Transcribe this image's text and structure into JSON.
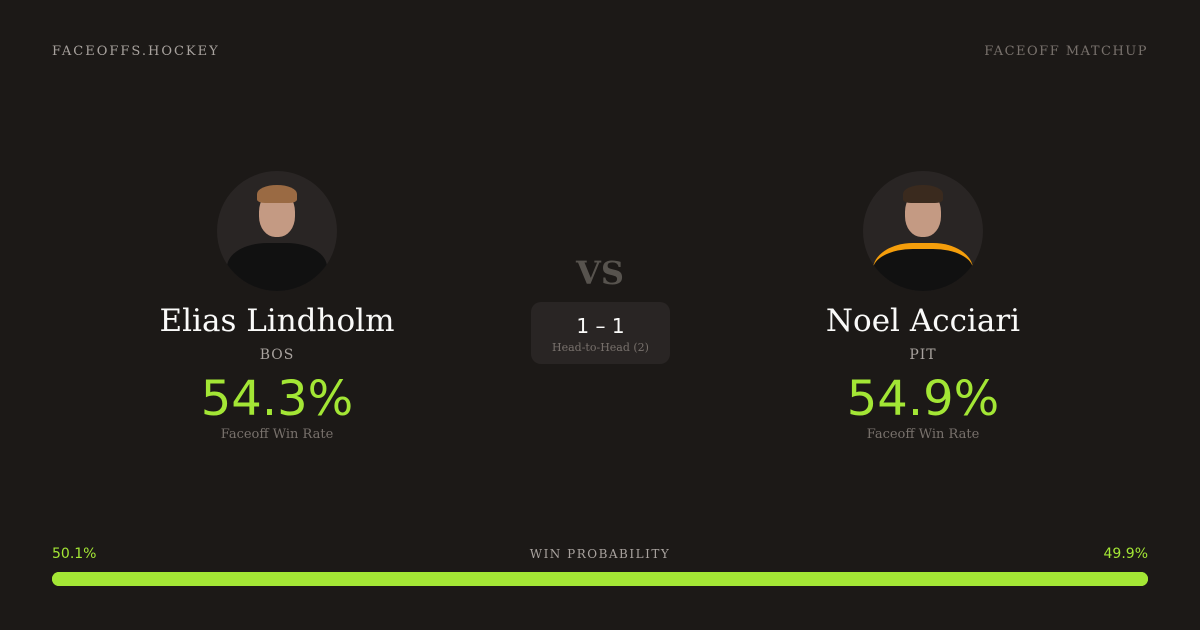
{
  "header": {
    "brand": "FACEOFFS.HOCKEY",
    "tag": "FACEOFF MATCHUP"
  },
  "players": [
    {
      "name": "Elias Lindholm",
      "team": "BOS",
      "win_rate": "54.3%",
      "win_rate_label": "Faceoff Win Rate",
      "hair_color": "#9a6a43"
    },
    {
      "name": "Noel Acciari",
      "team": "PIT",
      "win_rate": "54.9%",
      "win_rate_label": "Faceoff Win Rate",
      "hair_color": "#3a2a1e"
    }
  ],
  "vs": "VS",
  "head_to_head": {
    "score": "1 – 1",
    "label": "Head-to-Head (2)"
  },
  "win_probability": {
    "label": "WIN PROBABILITY",
    "left": "50.1%",
    "right": "49.9%",
    "left_value": 50.1,
    "right_value": 49.9
  },
  "colors": {
    "background": "#1c1917",
    "accent": "#a3e635"
  }
}
